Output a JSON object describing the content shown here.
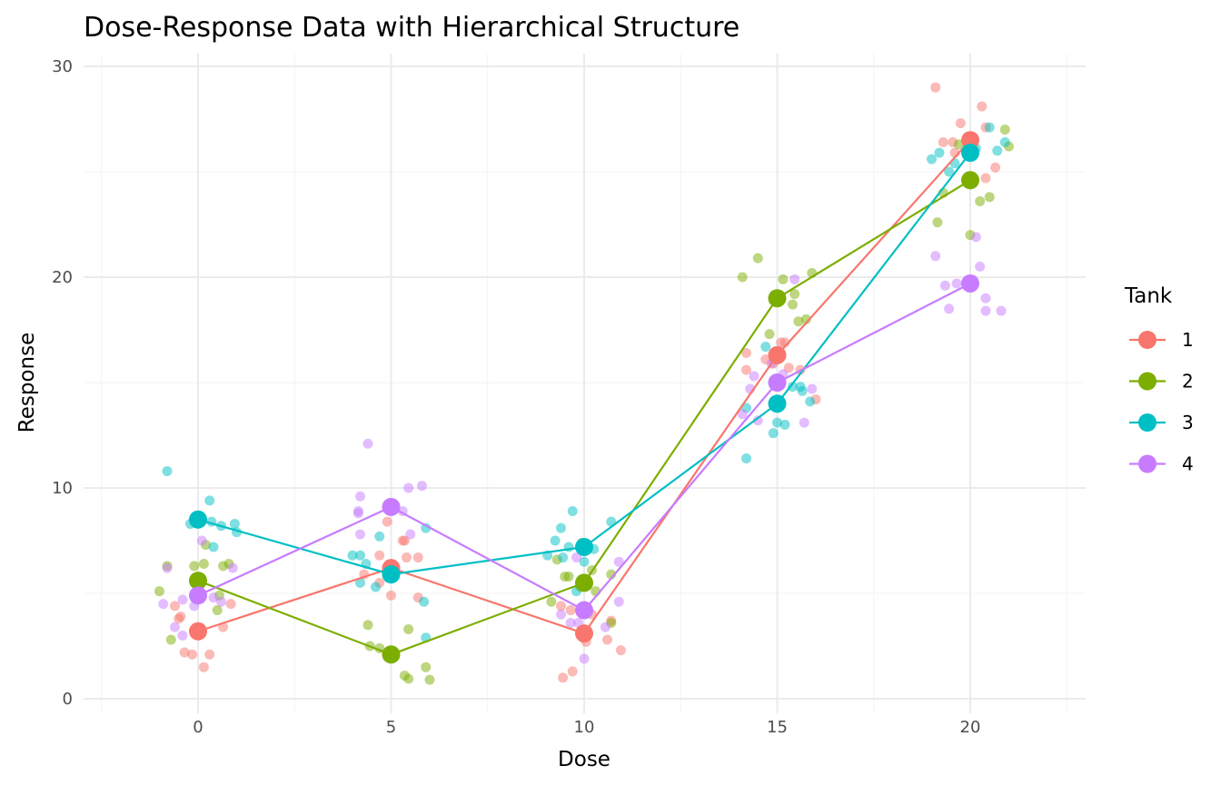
{
  "chart_data": {
    "type": "scatter",
    "title": "Dose-Response Data with Hierarchical Structure",
    "xlabel": "Dose",
    "ylabel": "Response",
    "xlim": [
      -3,
      23
    ],
    "ylim": [
      -0.7,
      30.6
    ],
    "x_ticks": [
      0,
      5,
      10,
      15,
      20
    ],
    "y_ticks": [
      0,
      10,
      20,
      30
    ],
    "grid": true,
    "legend": {
      "title": "Tank",
      "position": "right"
    },
    "series": [
      {
        "name": "1",
        "color": "#F8766D",
        "means": [
          [
            0,
            3.2
          ],
          [
            5,
            6.2
          ],
          [
            10,
            3.1
          ],
          [
            15,
            16.3
          ],
          [
            20,
            26.5
          ]
        ],
        "points": [
          [
            -0.6,
            4.4
          ],
          [
            -0.45,
            3.9
          ],
          [
            -0.5,
            3.8
          ],
          [
            -0.35,
            2.2
          ],
          [
            -0.15,
            2.1
          ],
          [
            0.15,
            1.5
          ],
          [
            0.3,
            2.1
          ],
          [
            0.65,
            3.4
          ],
          [
            0.85,
            4.5
          ],
          [
            4.9,
            8.4
          ],
          [
            4.7,
            6.8
          ],
          [
            4.3,
            5.9
          ],
          [
            4.7,
            5.5
          ],
          [
            5.0,
            4.9
          ],
          [
            5.3,
            7.5
          ],
          [
            5.4,
            6.7
          ],
          [
            5.7,
            6.7
          ],
          [
            5.7,
            4.8
          ],
          [
            5.35,
            7.5
          ],
          [
            9.4,
            4.4
          ],
          [
            9.65,
            4.2
          ],
          [
            10.05,
            2.7
          ],
          [
            10.6,
            2.8
          ],
          [
            10.95,
            2.3
          ],
          [
            9.45,
            1.0
          ],
          [
            9.7,
            1.3
          ],
          [
            10.7,
            3.7
          ],
          [
            10.2,
            4.0
          ],
          [
            14.2,
            16.4
          ],
          [
            14.2,
            15.6
          ],
          [
            14.7,
            16.1
          ],
          [
            15.1,
            16.9
          ],
          [
            15.2,
            16.9
          ],
          [
            15.3,
            15.7
          ],
          [
            15.6,
            15.6
          ],
          [
            16.0,
            14.2
          ],
          [
            14.9,
            15.9
          ],
          [
            19.1,
            29.0
          ],
          [
            19.3,
            26.4
          ],
          [
            19.55,
            26.4
          ],
          [
            19.6,
            25.9
          ],
          [
            19.75,
            27.3
          ],
          [
            20.3,
            28.1
          ],
          [
            20.4,
            27.1
          ],
          [
            20.4,
            24.7
          ],
          [
            20.65,
            25.2
          ]
        ]
      },
      {
        "name": "2",
        "color": "#7CAE00",
        "means": [
          [
            0,
            5.6
          ],
          [
            5,
            2.1
          ],
          [
            10,
            5.5
          ],
          [
            15,
            19.0
          ],
          [
            20,
            24.6
          ]
        ],
        "points": [
          [
            -1.0,
            5.1
          ],
          [
            -0.8,
            6.3
          ],
          [
            -0.7,
            2.8
          ],
          [
            -0.1,
            6.3
          ],
          [
            0.15,
            6.4
          ],
          [
            0.2,
            7.3
          ],
          [
            0.65,
            6.3
          ],
          [
            0.8,
            6.4
          ],
          [
            0.55,
            4.9
          ],
          [
            0.5,
            4.2
          ],
          [
            4.4,
            3.5
          ],
          [
            4.45,
            2.5
          ],
          [
            4.7,
            2.4
          ],
          [
            5.45,
            3.3
          ],
          [
            5.35,
            1.1
          ],
          [
            5.45,
            0.95
          ],
          [
            5.9,
            1.5
          ],
          [
            6.0,
            0.9
          ],
          [
            9.3,
            6.6
          ],
          [
            9.5,
            5.8
          ],
          [
            9.6,
            5.8
          ],
          [
            9.15,
            4.6
          ],
          [
            10.2,
            6.1
          ],
          [
            10.3,
            5.1
          ],
          [
            10.7,
            5.9
          ],
          [
            10.7,
            3.6
          ],
          [
            9.9,
            5.3
          ],
          [
            9.95,
            7.4
          ],
          [
            14.8,
            17.3
          ],
          [
            14.1,
            20.0
          ],
          [
            14.5,
            20.9
          ],
          [
            15.15,
            19.9
          ],
          [
            15.45,
            19.2
          ],
          [
            15.4,
            18.7
          ],
          [
            15.55,
            17.9
          ],
          [
            15.75,
            18.0
          ],
          [
            15.9,
            20.2
          ],
          [
            19.15,
            22.6
          ],
          [
            19.3,
            24.0
          ],
          [
            19.7,
            26.3
          ],
          [
            20.0,
            22.0
          ],
          [
            20.9,
            27.0
          ],
          [
            21.0,
            26.2
          ],
          [
            20.25,
            23.6
          ],
          [
            20.5,
            23.8
          ]
        ]
      },
      {
        "name": "3",
        "color": "#00BFC4",
        "means": [
          [
            0,
            8.5
          ],
          [
            5,
            5.9
          ],
          [
            10,
            7.2
          ],
          [
            15,
            14.0
          ],
          [
            20,
            25.9
          ]
        ],
        "points": [
          [
            -0.8,
            10.8
          ],
          [
            0.3,
            9.4
          ],
          [
            -0.2,
            8.3
          ],
          [
            0.05,
            8.4
          ],
          [
            0.35,
            8.4
          ],
          [
            0.6,
            8.2
          ],
          [
            0.95,
            8.3
          ],
          [
            1.0,
            7.9
          ],
          [
            0.4,
            7.2
          ],
          [
            4.0,
            6.8
          ],
          [
            4.2,
            6.8
          ],
          [
            4.35,
            6.4
          ],
          [
            4.2,
            5.5
          ],
          [
            4.6,
            5.3
          ],
          [
            4.7,
            7.7
          ],
          [
            5.9,
            8.1
          ],
          [
            5.85,
            4.6
          ],
          [
            5.9,
            2.9
          ],
          [
            9.7,
            8.9
          ],
          [
            9.4,
            8.1
          ],
          [
            9.25,
            7.5
          ],
          [
            9.6,
            7.2
          ],
          [
            9.05,
            6.8
          ],
          [
            9.45,
            6.7
          ],
          [
            10.0,
            6.5
          ],
          [
            10.25,
            7.1
          ],
          [
            10.7,
            8.4
          ],
          [
            9.8,
            5.1
          ],
          [
            14.2,
            13.8
          ],
          [
            14.7,
            16.7
          ],
          [
            14.9,
            12.6
          ],
          [
            15.0,
            13.1
          ],
          [
            15.2,
            13.0
          ],
          [
            15.4,
            14.8
          ],
          [
            15.6,
            14.8
          ],
          [
            15.65,
            14.6
          ],
          [
            15.85,
            14.1
          ],
          [
            14.2,
            11.4
          ],
          [
            19.0,
            25.6
          ],
          [
            19.2,
            25.9
          ],
          [
            19.45,
            25.0
          ],
          [
            19.6,
            25.4
          ],
          [
            20.15,
            26.1
          ],
          [
            20.5,
            27.1
          ],
          [
            20.7,
            26.0
          ],
          [
            20.9,
            26.4
          ]
        ]
      },
      {
        "name": "4",
        "color": "#C77CFF",
        "means": [
          [
            0,
            4.9
          ],
          [
            5,
            9.1
          ],
          [
            10,
            4.2
          ],
          [
            15,
            15.0
          ],
          [
            20,
            19.7
          ]
        ],
        "points": [
          [
            -0.8,
            6.2
          ],
          [
            -0.9,
            4.5
          ],
          [
            -0.6,
            3.4
          ],
          [
            -0.4,
            3.0
          ],
          [
            -0.4,
            4.7
          ],
          [
            -0.1,
            4.4
          ],
          [
            0.1,
            7.5
          ],
          [
            0.4,
            4.8
          ],
          [
            0.6,
            4.6
          ],
          [
            0.9,
            6.2
          ],
          [
            4.4,
            12.1
          ],
          [
            4.2,
            9.6
          ],
          [
            4.15,
            8.9
          ],
          [
            4.15,
            8.8
          ],
          [
            4.2,
            7.8
          ],
          [
            5.45,
            10.0
          ],
          [
            5.8,
            10.1
          ],
          [
            5.3,
            8.9
          ],
          [
            5.5,
            7.8
          ],
          [
            9.4,
            4.0
          ],
          [
            9.65,
            3.6
          ],
          [
            9.85,
            3.6
          ],
          [
            10.55,
            3.4
          ],
          [
            10.9,
            6.5
          ],
          [
            10.9,
            4.6
          ],
          [
            10.0,
            1.9
          ],
          [
            9.8,
            6.7
          ],
          [
            14.1,
            13.5
          ],
          [
            14.3,
            14.7
          ],
          [
            14.4,
            15.3
          ],
          [
            14.5,
            13.2
          ],
          [
            14.85,
            15.9
          ],
          [
            15.15,
            15.4
          ],
          [
            15.45,
            19.9
          ],
          [
            15.7,
            13.1
          ],
          [
            15.9,
            14.7
          ],
          [
            19.1,
            21.0
          ],
          [
            19.35,
            19.6
          ],
          [
            19.45,
            18.5
          ],
          [
            19.65,
            19.7
          ],
          [
            20.15,
            21.9
          ],
          [
            20.25,
            20.5
          ],
          [
            20.4,
            19.0
          ],
          [
            20.4,
            18.4
          ],
          [
            20.8,
            18.4
          ]
        ]
      }
    ]
  }
}
